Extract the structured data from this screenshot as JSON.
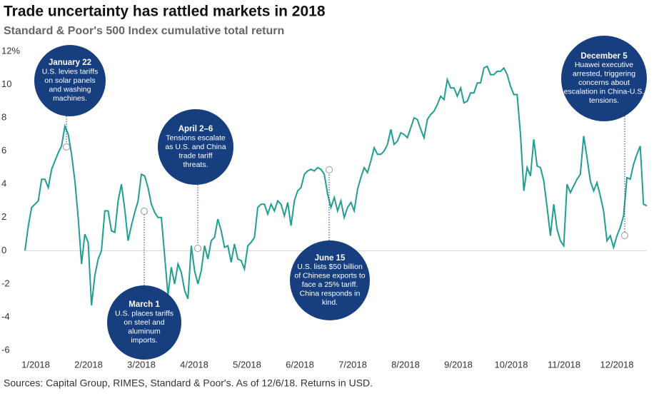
{
  "chart_data": {
    "type": "line",
    "title": "Trade uncertainty has rattled markets in 2018",
    "subtitle": "Standard & Poor's 500 Index cumulative total return",
    "source": "Sources: Capital Group, RIMES, Standard & Poor's. As of 12/6/18. Returns in USD.",
    "x_labels": [
      "1/2018",
      "2/2018",
      "3/2018",
      "4/2018",
      "5/2018",
      "6/2018",
      "7/2018",
      "8/2018",
      "9/2018",
      "10/2018",
      "11/2018",
      "12/2018"
    ],
    "ylim": [
      -6,
      12
    ],
    "yticks": [
      -6,
      -4,
      -2,
      0,
      2,
      4,
      6,
      8,
      10,
      {
        "value": 12,
        "label": "12%"
      }
    ],
    "series": [
      {
        "name": "S&P 500",
        "color": "#1f9e91",
        "values": [
          0,
          1.5,
          2.6,
          2.8,
          3,
          4.3,
          4.3,
          3.8,
          4.9,
          5.4,
          5.9,
          6.3,
          7.5,
          7,
          5.8,
          4.2,
          2,
          -0.8,
          1,
          0.5,
          -3.3,
          -1.5,
          -0.5,
          0,
          2.4,
          2.4,
          1.2,
          1.1,
          3,
          4,
          2.5,
          0.6,
          1.5,
          2.3,
          3,
          4.6,
          4.5,
          3.8,
          2.8,
          2.3,
          2,
          2,
          -0.3,
          -2.7,
          -1,
          -2,
          -0.8,
          -1.3,
          -2.4,
          -2.9,
          0.3,
          -1.2,
          -2,
          -1.2,
          0.3,
          -0.5,
          0.6,
          0.8,
          1.9,
          1.2,
          0.2,
          0.3,
          -0.7,
          0.4,
          -0.5,
          -0.6,
          -1.1,
          0.3,
          0.5,
          0.8,
          2.6,
          2.8,
          2.8,
          2.2,
          2.8,
          2.4,
          3,
          2.8,
          2.1,
          2.9,
          1.5,
          3,
          3.6,
          3.8,
          4.6,
          4.8,
          4.9,
          4.8,
          5,
          4.9,
          4.6,
          3.4,
          2.6,
          3.2,
          2.4,
          3,
          2,
          2.6,
          2.9,
          2.4,
          3.7,
          4.4,
          5,
          4.7,
          5.4,
          6.2,
          5.8,
          5.8,
          6,
          6.4,
          7.3,
          6.4,
          6.6,
          7.1,
          7,
          6.8,
          7.4,
          8,
          7.9,
          7.3,
          6.8,
          7.9,
          8.2,
          8.4,
          8.8,
          9.3,
          9.1,
          10.3,
          9.8,
          9.8,
          9.3,
          9.8,
          8.9,
          9,
          9.5,
          9.5,
          10.1,
          10.1,
          11,
          11.1,
          10.6,
          10.6,
          10.8,
          10.8,
          11,
          10.6,
          9.9,
          9.4,
          9.4,
          7,
          3.6,
          5,
          4.5,
          6.7,
          5.1,
          5,
          4.2,
          2.6,
          0.9,
          2.8,
          1.3,
          0.6,
          0.3,
          4,
          3.5,
          3.9,
          4.3,
          4.6,
          6.9,
          5.6,
          4.2,
          3.6,
          4.1,
          3.3,
          2.4,
          0.6,
          0.9,
          0.2,
          0.9,
          1.4,
          2.1,
          4.4,
          4.3,
          5.2,
          5.8,
          6.3,
          2.8,
          2.7
        ]
      }
    ],
    "annotations": [
      {
        "title": "January 22",
        "lines": [
          "U.S. levies tariffs",
          "on solar panels",
          "and washing",
          "machines."
        ]
      },
      {
        "title": "March 1",
        "lines": [
          "U.S. places tariffs",
          "on steel and",
          "aluminum",
          "imports."
        ]
      },
      {
        "title": "April 2–6",
        "lines": [
          "Tensions escalate",
          "as U.S. and China",
          "trade tariff",
          "threats."
        ]
      },
      {
        "title": "June 15",
        "lines": [
          "U.S. lists $50 billion",
          "of Chinese exports to",
          "face a 25% tariff.",
          "China responds in",
          "kind."
        ]
      },
      {
        "title": "December 5",
        "lines": [
          "Huawei executive",
          "arrested, triggering",
          "concerns about",
          "escalation in China-U.S.",
          "tensions."
        ]
      }
    ]
  }
}
